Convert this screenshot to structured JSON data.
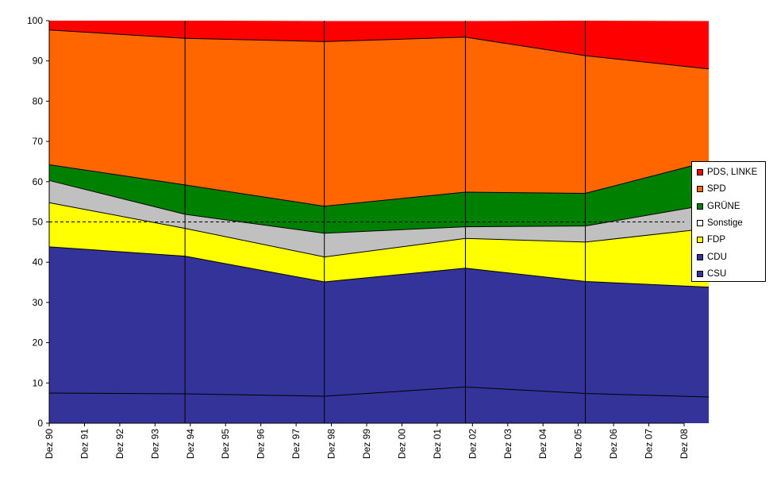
{
  "chart_data": {
    "type": "area",
    "stacked": true,
    "x": [
      "Dez 90",
      "Dez 91",
      "Dez 92",
      "Dez 93",
      "Dez 94",
      "Dez 95",
      "Dez 96",
      "Dez 97",
      "Dez 98",
      "Dez 99",
      "Dez 00",
      "Dez 01",
      "Dez 02",
      "Dez 03",
      "Dez 04",
      "Dez 05",
      "Dez 06",
      "Dez 07",
      "Dez 08"
    ],
    "election_points": [
      {
        "x": 0,
        "values": [
          7.5,
          36.3,
          11.0,
          5.5,
          3.9,
          33.5,
          2.3
        ]
      },
      {
        "x": 3.85,
        "values": [
          7.3,
          34.2,
          6.9,
          3.5,
          7.3,
          36.4,
          4.4
        ]
      },
      {
        "x": 7.8,
        "values": [
          6.7,
          28.4,
          6.2,
          5.9,
          6.7,
          40.9,
          5.1
        ]
      },
      {
        "x": 11.8,
        "values": [
          9.0,
          29.5,
          7.4,
          2.9,
          8.6,
          38.5,
          4.0
        ]
      },
      {
        "x": 15.2,
        "values": [
          7.4,
          27.8,
          9.8,
          4.0,
          8.1,
          34.2,
          8.7
        ]
      },
      {
        "x": 18.7,
        "values": [
          6.5,
          27.3,
          14.6,
          5.9,
          10.7,
          23.0,
          11.9
        ]
      }
    ],
    "series": [
      {
        "name": "CSU",
        "color": "#333399"
      },
      {
        "name": "CDU",
        "color": "#333399"
      },
      {
        "name": "FDP",
        "color": "#ffff00"
      },
      {
        "name": "Sonstige",
        "color": "#c0c0c0"
      },
      {
        "name": "GRÜNE",
        "color": "#008000"
      },
      {
        "name": "SPD",
        "color": "#ff6600"
      },
      {
        "name": "PDS, LINKE",
        "color": "#ff0000"
      }
    ],
    "ylim": [
      0,
      100
    ],
    "yticks": [
      0,
      10,
      20,
      30,
      40,
      50,
      60,
      70,
      80,
      90,
      100
    ],
    "reference_line": 50,
    "xlabel": "",
    "ylabel": "",
    "title": "",
    "legend_position": "right",
    "legend": [
      "PDS, LINKE",
      "SPD",
      "GRÜNE",
      "Sonstige",
      "FDP",
      "CDU",
      "CSU"
    ],
    "legend_colors": [
      "#ff0000",
      "#ff6600",
      "#008000",
      "#ffffff",
      "#ffff00",
      "#333399",
      "#333399"
    ]
  }
}
